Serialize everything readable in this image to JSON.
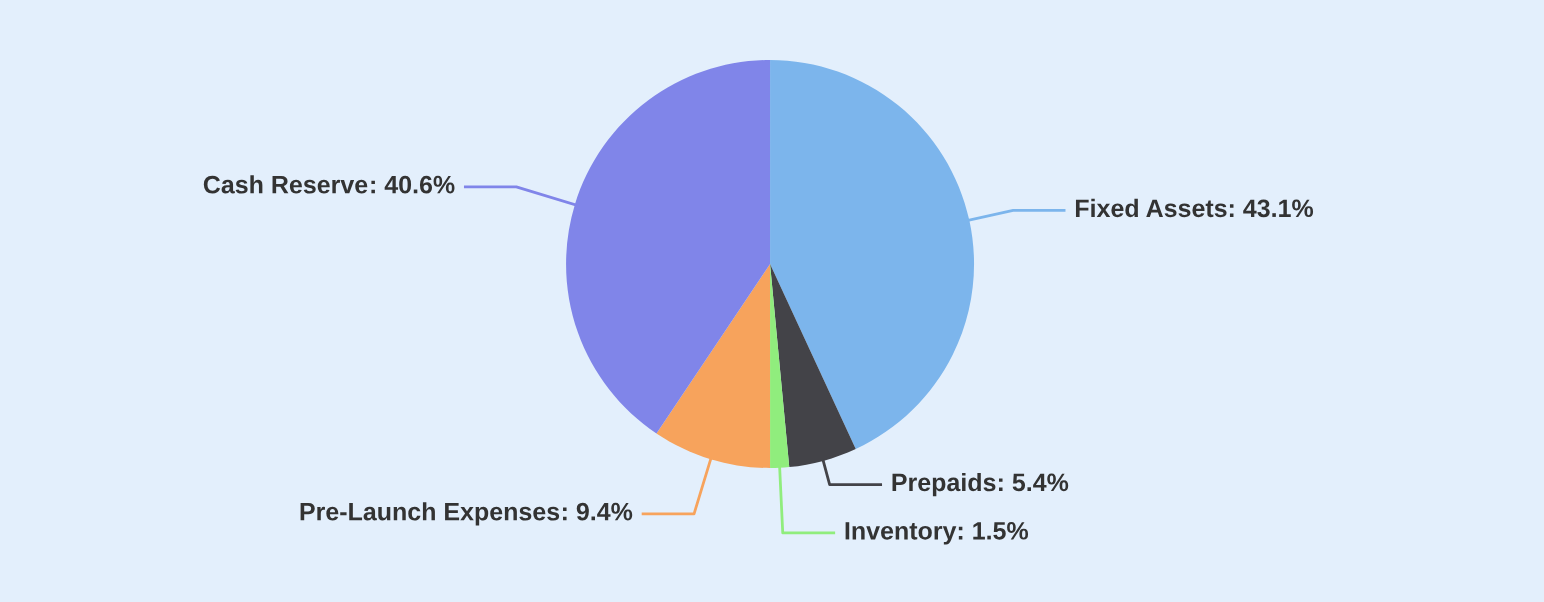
{
  "chart_data": {
    "type": "pie",
    "categories": [
      "Fixed Assets",
      "Prepaids",
      "Inventory",
      "Pre-Launch Expenses",
      "Cash Reserve"
    ],
    "values": [
      43.1,
      5.4,
      1.5,
      9.4,
      40.6
    ],
    "colors": [
      "#7cb5ec",
      "#434348",
      "#90ed7d",
      "#f7a35c",
      "#8085e9"
    ],
    "value_labels": [
      ": 43.1%",
      ": 5.4%",
      ": 1.5%",
      ": 9.4%",
      ": 40.6%"
    ]
  }
}
